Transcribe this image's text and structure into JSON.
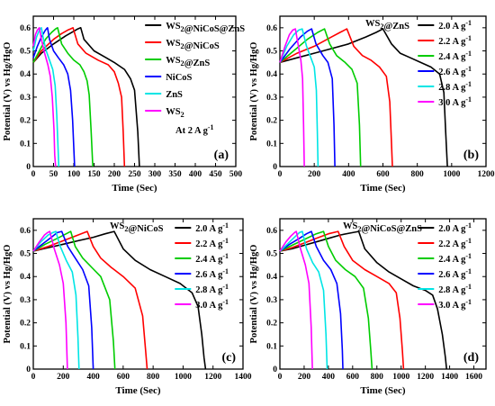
{
  "figure": {
    "background": "#ffffff",
    "axis_color": "#000000",
    "panels_layout": "2x2"
  },
  "chart_data": [
    {
      "type": "line",
      "panel_label": "(a)",
      "annotation": "At 2 A g⁻¹",
      "xlabel": "Time (Sec)",
      "ylabel": "Potential (V) vs Hg/HgO",
      "xlim": [
        0,
        500
      ],
      "ylim": [
        0,
        0.65
      ],
      "xticks": [
        0,
        50,
        100,
        150,
        200,
        250,
        300,
        350,
        400,
        450,
        500
      ],
      "yticks": [
        0.0,
        0.1,
        0.2,
        0.3,
        0.4,
        0.5,
        0.6
      ],
      "legend_position": "top-right",
      "series": [
        {
          "name": "WS₂@NiCoS@ZnS",
          "color": "#000000",
          "x": [
            0,
            20,
            50,
            80,
            100,
            110,
            117,
            125,
            150,
            180,
            200,
            225,
            240,
            250,
            258,
            262
          ],
          "y": [
            0.45,
            0.49,
            0.53,
            0.565,
            0.585,
            0.595,
            0.6,
            0.55,
            0.5,
            0.47,
            0.45,
            0.42,
            0.38,
            0.33,
            0.15,
            0.0
          ]
        },
        {
          "name": "WS₂@NiCoS",
          "color": "#ff0000",
          "x": [
            0,
            20,
            50,
            70,
            85,
            92,
            98,
            110,
            130,
            160,
            185,
            200,
            210,
            218,
            222,
            225
          ],
          "y": [
            0.45,
            0.5,
            0.55,
            0.575,
            0.59,
            0.595,
            0.6,
            0.53,
            0.49,
            0.46,
            0.44,
            0.41,
            0.36,
            0.3,
            0.15,
            0.0
          ]
        },
        {
          "name": "WS₂@ZnS",
          "color": "#00cc00",
          "x": [
            0,
            15,
            30,
            45,
            55,
            60,
            70,
            85,
            100,
            115,
            125,
            133,
            138,
            143,
            147
          ],
          "y": [
            0.45,
            0.5,
            0.55,
            0.58,
            0.595,
            0.6,
            0.53,
            0.49,
            0.46,
            0.44,
            0.41,
            0.37,
            0.31,
            0.15,
            0.0
          ]
        },
        {
          "name": "NiCoS",
          "color": "#0000ff",
          "x": [
            0,
            10,
            20,
            30,
            35,
            40,
            50,
            62,
            75,
            85,
            92,
            97,
            100,
            102
          ],
          "y": [
            0.47,
            0.52,
            0.56,
            0.59,
            0.6,
            0.55,
            0.5,
            0.47,
            0.44,
            0.4,
            0.33,
            0.2,
            0.08,
            0.0
          ]
        },
        {
          "name": "ZnS",
          "color": "#00e5e5",
          "x": [
            0,
            8,
            15,
            20,
            25,
            32,
            40,
            48,
            54,
            58,
            61,
            63
          ],
          "y": [
            0.5,
            0.56,
            0.59,
            0.6,
            0.55,
            0.5,
            0.46,
            0.42,
            0.35,
            0.22,
            0.08,
            0.0
          ]
        },
        {
          "name": "WS₂",
          "color": "#ff00ff",
          "x": [
            0,
            5,
            10,
            15,
            20,
            28,
            36,
            42,
            47,
            51,
            53,
            55
          ],
          "y": [
            0.52,
            0.57,
            0.59,
            0.6,
            0.55,
            0.49,
            0.44,
            0.39,
            0.3,
            0.16,
            0.05,
            0.0
          ]
        }
      ]
    },
    {
      "type": "line",
      "panel_label": "(b)",
      "title": "WS₂@ZnS",
      "xlabel": "Time (Sec)",
      "ylabel": "Potential (V) vs Hg/HgO",
      "xlim": [
        0,
        1200
      ],
      "ylim": [
        0,
        0.65
      ],
      "xticks": [
        0,
        200,
        400,
        600,
        800,
        1000,
        1200
      ],
      "yticks": [
        0.0,
        0.1,
        0.2,
        0.3,
        0.4,
        0.5,
        0.6
      ],
      "legend_position": "top-right",
      "series": [
        {
          "name": "2.0 A g⁻¹",
          "color": "#000000",
          "x": [
            0,
            100,
            200,
            300,
            400,
            500,
            560,
            600,
            650,
            700,
            760,
            820,
            880,
            930,
            955,
            965,
            975
          ],
          "y": [
            0.45,
            0.47,
            0.49,
            0.51,
            0.53,
            0.56,
            0.58,
            0.595,
            0.53,
            0.49,
            0.47,
            0.45,
            0.43,
            0.4,
            0.32,
            0.15,
            0.0
          ]
        },
        {
          "name": "2.2 A g⁻¹",
          "color": "#ff0000",
          "x": [
            0,
            100,
            200,
            300,
            350,
            390,
            430,
            480,
            530,
            580,
            620,
            640,
            650,
            655
          ],
          "y": [
            0.45,
            0.49,
            0.52,
            0.56,
            0.58,
            0.595,
            0.52,
            0.48,
            0.46,
            0.43,
            0.39,
            0.28,
            0.1,
            0.0
          ]
        },
        {
          "name": "2.4 A g⁻¹",
          "color": "#00cc00",
          "x": [
            0,
            80,
            160,
            220,
            260,
            290,
            330,
            380,
            420,
            450,
            463,
            470
          ],
          "y": [
            0.45,
            0.5,
            0.55,
            0.58,
            0.595,
            0.53,
            0.48,
            0.45,
            0.42,
            0.36,
            0.18,
            0.0
          ]
        },
        {
          "name": "2.6 A g⁻¹",
          "color": "#0000ff",
          "x": [
            0,
            60,
            120,
            160,
            185,
            210,
            250,
            280,
            305,
            315,
            320
          ],
          "y": [
            0.45,
            0.51,
            0.56,
            0.585,
            0.595,
            0.53,
            0.48,
            0.45,
            0.38,
            0.18,
            0.0
          ]
        },
        {
          "name": "2.8 A g⁻¹",
          "color": "#00e5e5",
          "x": [
            0,
            40,
            80,
            110,
            130,
            155,
            180,
            200,
            212,
            218,
            222
          ],
          "y": [
            0.45,
            0.52,
            0.57,
            0.59,
            0.595,
            0.52,
            0.47,
            0.43,
            0.33,
            0.15,
            0.0
          ]
        },
        {
          "name": "3.0 A g⁻¹",
          "color": "#ff00ff",
          "x": [
            0,
            30,
            55,
            75,
            90,
            108,
            122,
            132,
            138,
            142
          ],
          "y": [
            0.45,
            0.52,
            0.57,
            0.59,
            0.595,
            0.52,
            0.46,
            0.38,
            0.18,
            0.0
          ]
        }
      ]
    },
    {
      "type": "line",
      "panel_label": "(c)",
      "title": "WS₂@NiCoS",
      "xlabel": "Time (Sec)",
      "ylabel": "Potential (V) vs Hg/HgO",
      "xlim": [
        0,
        1400
      ],
      "ylim": [
        0,
        0.65
      ],
      "xticks": [
        0,
        200,
        400,
        600,
        800,
        1000,
        1200,
        1400
      ],
      "yticks": [
        0.0,
        0.1,
        0.2,
        0.3,
        0.4,
        0.5,
        0.6
      ],
      "legend_position": "top-right",
      "series": [
        {
          "name": "2.0 A g⁻¹",
          "color": "#000000",
          "x": [
            0,
            100,
            200,
            300,
            400,
            480,
            540,
            600,
            680,
            780,
            880,
            980,
            1060,
            1100,
            1125,
            1140,
            1150
          ],
          "y": [
            0.51,
            0.525,
            0.54,
            0.555,
            0.57,
            0.585,
            0.595,
            0.52,
            0.47,
            0.43,
            0.4,
            0.37,
            0.33,
            0.27,
            0.15,
            0.05,
            0.0
          ]
        },
        {
          "name": "2.2 A g⁻¹",
          "color": "#ff0000",
          "x": [
            0,
            100,
            200,
            300,
            360,
            400,
            450,
            520,
            600,
            680,
            730,
            750,
            760
          ],
          "y": [
            0.51,
            0.53,
            0.555,
            0.58,
            0.595,
            0.53,
            0.48,
            0.44,
            0.4,
            0.35,
            0.23,
            0.08,
            0.0
          ]
        },
        {
          "name": "2.4 A g⁻¹",
          "color": "#00cc00",
          "x": [
            0,
            80,
            160,
            220,
            250,
            280,
            330,
            390,
            450,
            510,
            535,
            545
          ],
          "y": [
            0.51,
            0.54,
            0.565,
            0.585,
            0.595,
            0.53,
            0.48,
            0.44,
            0.4,
            0.3,
            0.12,
            0.0
          ]
        },
        {
          "name": "2.6 A g⁻¹",
          "color": "#0000ff",
          "x": [
            0,
            60,
            120,
            160,
            190,
            230,
            280,
            330,
            370,
            390,
            400
          ],
          "y": [
            0.51,
            0.54,
            0.57,
            0.59,
            0.595,
            0.53,
            0.48,
            0.43,
            0.36,
            0.18,
            0.0
          ]
        },
        {
          "name": "2.8 A g⁻¹",
          "color": "#00e5e5",
          "x": [
            0,
            50,
            100,
            130,
            150,
            180,
            220,
            260,
            285,
            298,
            305
          ],
          "y": [
            0.51,
            0.55,
            0.58,
            0.59,
            0.595,
            0.53,
            0.47,
            0.42,
            0.32,
            0.14,
            0.0
          ]
        },
        {
          "name": "3.0 A g⁻¹",
          "color": "#ff00ff",
          "x": [
            0,
            40,
            75,
            95,
            110,
            140,
            175,
            200,
            218,
            228
          ],
          "y": [
            0.51,
            0.55,
            0.58,
            0.59,
            0.595,
            0.52,
            0.45,
            0.37,
            0.2,
            0.0
          ]
        }
      ]
    },
    {
      "type": "line",
      "panel_label": "(d)",
      "title": "WS₂@NiCoS@ZnS",
      "xlabel": "Time (Sec)",
      "ylabel": "Potential (V) vs Hg/HgO",
      "xlim": [
        0,
        1700
      ],
      "ylim": [
        0,
        0.65
      ],
      "xticks": [
        0,
        200,
        400,
        600,
        800,
        1000,
        1200,
        1400,
        1600
      ],
      "yticks": [
        0.0,
        0.1,
        0.2,
        0.3,
        0.4,
        0.5,
        0.6
      ],
      "legend_position": "top-right",
      "series": [
        {
          "name": "2.0 A g⁻¹",
          "color": "#000000",
          "x": [
            0,
            100,
            200,
            300,
            400,
            500,
            600,
            650,
            700,
            800,
            900,
            1000,
            1100,
            1200,
            1260,
            1300,
            1340,
            1365,
            1375
          ],
          "y": [
            0.51,
            0.52,
            0.535,
            0.55,
            0.565,
            0.58,
            0.59,
            0.595,
            0.52,
            0.46,
            0.42,
            0.39,
            0.36,
            0.34,
            0.32,
            0.26,
            0.15,
            0.05,
            0.0
          ]
        },
        {
          "name": "2.2 A g⁻¹",
          "color": "#ff0000",
          "x": [
            0,
            100,
            200,
            300,
            400,
            480,
            530,
            600,
            700,
            800,
            900,
            960,
            990,
            1010,
            1020
          ],
          "y": [
            0.51,
            0.525,
            0.545,
            0.565,
            0.585,
            0.595,
            0.53,
            0.47,
            0.43,
            0.4,
            0.37,
            0.33,
            0.22,
            0.08,
            0.0
          ]
        },
        {
          "name": "2.4 A g⁻¹",
          "color": "#00cc00",
          "x": [
            0,
            100,
            200,
            300,
            360,
            400,
            460,
            540,
            620,
            690,
            730,
            750,
            760
          ],
          "y": [
            0.51,
            0.535,
            0.56,
            0.585,
            0.595,
            0.53,
            0.47,
            0.43,
            0.4,
            0.35,
            0.22,
            0.08,
            0.0
          ]
        },
        {
          "name": "2.6 A g⁻¹",
          "color": "#0000ff",
          "x": [
            0,
            80,
            160,
            220,
            260,
            300,
            360,
            420,
            470,
            500,
            515,
            520
          ],
          "y": [
            0.51,
            0.54,
            0.565,
            0.585,
            0.595,
            0.53,
            0.47,
            0.43,
            0.37,
            0.24,
            0.08,
            0.0
          ]
        },
        {
          "name": "2.8 A g⁻¹",
          "color": "#00e5e5",
          "x": [
            0,
            60,
            120,
            160,
            185,
            220,
            270,
            320,
            360,
            380,
            390
          ],
          "y": [
            0.51,
            0.54,
            0.57,
            0.59,
            0.595,
            0.52,
            0.46,
            0.42,
            0.34,
            0.15,
            0.0
          ]
        },
        {
          "name": "3.0 A g⁻¹",
          "color": "#ff00ff",
          "x": [
            0,
            50,
            90,
            120,
            135,
            170,
            210,
            240,
            258,
            268
          ],
          "y": [
            0.51,
            0.55,
            0.575,
            0.59,
            0.595,
            0.52,
            0.45,
            0.37,
            0.18,
            0.0
          ]
        }
      ]
    }
  ]
}
